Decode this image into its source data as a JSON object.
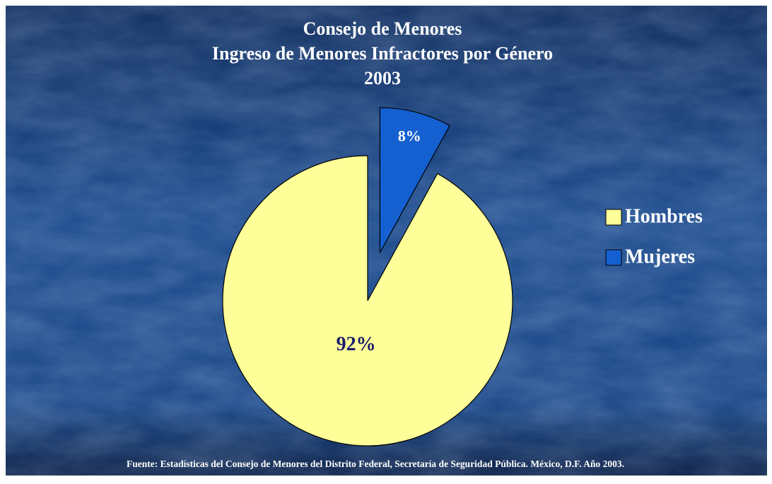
{
  "chart_data": {
    "type": "pie",
    "title": [
      "Consejo de Menores",
      "Ingreso de Menores Infractores por  Género",
      "2003"
    ],
    "categories": [
      "Hombres",
      "Mujeres"
    ],
    "values": [
      92,
      8
    ],
    "value_labels": [
      "92%",
      "8%"
    ],
    "colors": [
      "#ffff99",
      "#1560d0"
    ],
    "label_colors": [
      "#1c1c6a",
      "#ffffff"
    ],
    "explode": [
      false,
      true
    ],
    "legend": "right",
    "source": "Fuente: Estadísticas del Consejo de Menores del Distrito Federal, Secretaría de Seguridad Pública. México, D.F. Año 2003."
  }
}
